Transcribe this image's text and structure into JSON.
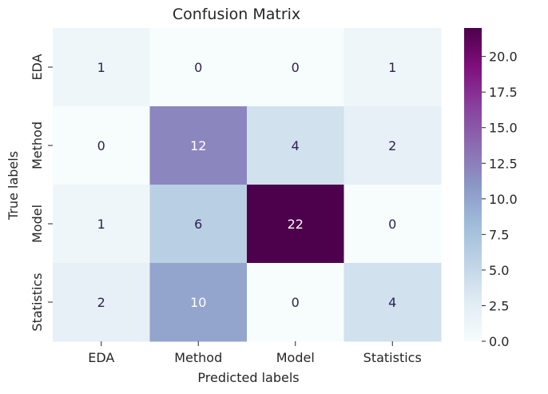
{
  "chart_data": {
    "type": "heatmap",
    "title": "Confusion Matrix",
    "xlabel": "Predicted labels",
    "ylabel": "True labels",
    "x_categories": [
      "EDA",
      "Method",
      "Model",
      "Statistics"
    ],
    "y_categories": [
      "EDA",
      "Method",
      "Model",
      "Statistics"
    ],
    "values": [
      [
        1,
        0,
        0,
        1
      ],
      [
        0,
        12,
        4,
        2
      ],
      [
        1,
        6,
        22,
        0
      ],
      [
        2,
        10,
        0,
        4
      ]
    ],
    "colorbar": {
      "min": 0,
      "max": 22,
      "ticks": [
        "0.0",
        "2.5",
        "5.0",
        "7.5",
        "10.0",
        "12.5",
        "15.0",
        "17.5",
        "20.0"
      ],
      "colormap": "BuPu",
      "colors": [
        "#f7fcfd",
        "#e0ecf4",
        "#bfd3e6",
        "#9ebcda",
        "#8c96c6",
        "#8c6bb1",
        "#88419d",
        "#810f7c",
        "#4d004b"
      ]
    },
    "annotation_text_dark": "#2b2350",
    "annotation_text_light": "#ffffff"
  }
}
